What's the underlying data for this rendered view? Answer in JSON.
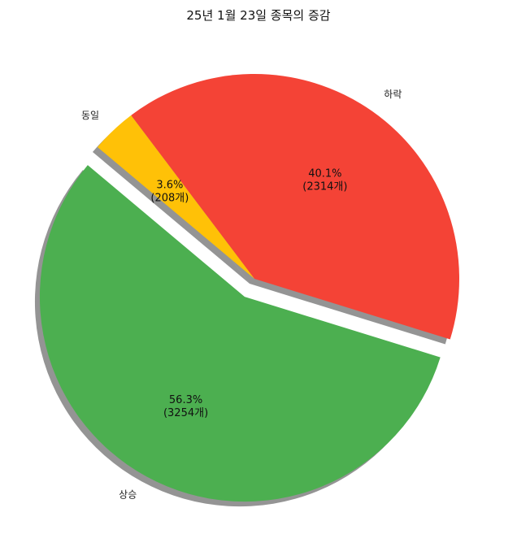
{
  "chart_data": {
    "type": "pie",
    "title": "25년 1월 23일 종목의 증감",
    "categories": [
      "상승",
      "하락",
      "동일"
    ],
    "values": [
      3254,
      2314,
      208
    ],
    "percent_labels": [
      "56.3%",
      "40.1%",
      "3.6%"
    ],
    "count_labels": [
      "(3254개)",
      "(2314개)",
      "(208개)"
    ],
    "colors": [
      "#4caf50",
      "#f44336",
      "#ffc107"
    ],
    "exploded": [
      "상승"
    ],
    "shadow": true,
    "legend": "none"
  }
}
